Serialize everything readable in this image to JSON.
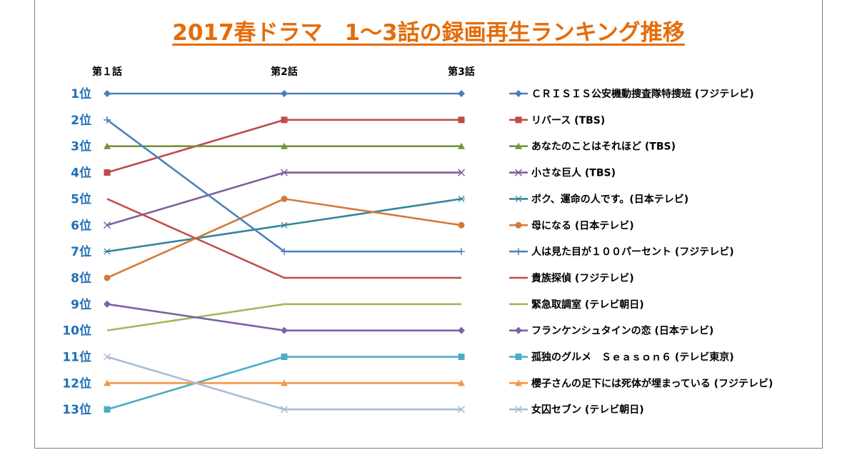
{
  "chart_data": {
    "type": "line",
    "title": "2017春ドラマ　1～3話の録画再生ランキング推移",
    "categories": [
      "第１話",
      "第2話",
      "第3話"
    ],
    "rank_labels": [
      "1位",
      "2位",
      "3位",
      "4位",
      "5位",
      "6位",
      "7位",
      "8位",
      "9位",
      "10位",
      "11位",
      "12位",
      "13位"
    ],
    "yscale": "rank (1 at top, reversed)",
    "ylim": [
      1,
      13
    ],
    "grid": false,
    "legend_position": "right",
    "series": [
      {
        "name": "ＣＲＩＳＩＳ公安機動捜査隊特捜班 (フジテレビ)",
        "values": [
          1,
          1,
          1
        ],
        "color": "#4a7ebb",
        "marker": "diamond"
      },
      {
        "name": "リバース (TBS)",
        "values": [
          4,
          2,
          2
        ],
        "color": "#be4b48",
        "marker": "square"
      },
      {
        "name": "あなたのことはそれほど (TBS)",
        "values": [
          3,
          3,
          3
        ],
        "color": "#77933c",
        "marker": "triangle"
      },
      {
        "name": "小さな巨人 (TBS)",
        "values": [
          6,
          4,
          4
        ],
        "color": "#7d5fa0",
        "marker": "x"
      },
      {
        "name": "ボク、運命の人です。(日本テレビ)",
        "values": [
          7,
          6,
          5
        ],
        "color": "#31859c",
        "marker": "star"
      },
      {
        "name": "母になる (日本テレビ)",
        "values": [
          8,
          5,
          6
        ],
        "color": "#d47a37",
        "marker": "circle"
      },
      {
        "name": "人は見た目が１００パーセント (フジテレビ)",
        "values": [
          2,
          7,
          7
        ],
        "color": "#4f81bd",
        "marker": "plus"
      },
      {
        "name": "貴族探偵 (フジテレビ)",
        "values": [
          5,
          8,
          8
        ],
        "color": "#c0504d",
        "marker": "none"
      },
      {
        "name": "緊急取調室 (テレビ朝日)",
        "values": [
          10,
          9,
          9
        ],
        "color": "#9bbb59",
        "marker": "none"
      },
      {
        "name": "フランケンシュタインの恋 (日本テレビ)",
        "values": [
          9,
          10,
          10
        ],
        "color": "#7f5fa8",
        "marker": "diamond"
      },
      {
        "name": "孤独のグルメ　Ｓｅａｓｏｎ６ (テレビ東京)",
        "values": [
          13,
          11,
          11
        ],
        "color": "#4bacc6",
        "marker": "square"
      },
      {
        "name": "櫻子さんの足下には死体が埋まっている (フジテレビ)",
        "values": [
          12,
          12,
          12
        ],
        "color": "#f79646",
        "marker": "triangle"
      },
      {
        "name": "女囚セブン (テレビ朝日)",
        "values": [
          11,
          13,
          13
        ],
        "color": "#aabad7",
        "marker": "x"
      }
    ]
  }
}
